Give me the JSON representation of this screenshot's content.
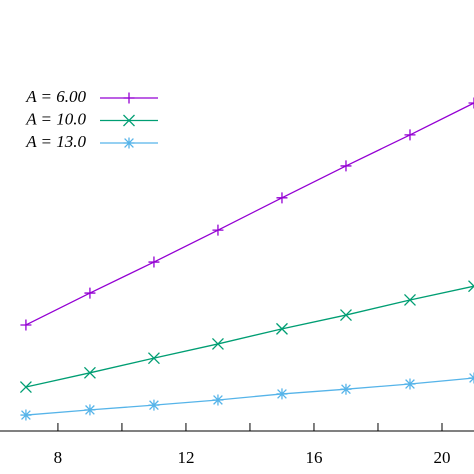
{
  "chart_data": {
    "type": "line",
    "x": [
      7,
      9,
      11,
      13,
      15,
      17,
      19,
      21
    ],
    "series": [
      {
        "name": "A = 6.00",
        "color": "#9400d3",
        "marker": "plus",
        "values": [
          24.6,
          32.0,
          39.2,
          46.6,
          54.1,
          61.5,
          68.7,
          76.1
        ]
      },
      {
        "name": "A = 10.0",
        "color": "#009e73",
        "marker": "cross",
        "values": [
          10.2,
          13.5,
          16.9,
          20.2,
          23.7,
          26.9,
          30.4,
          33.6
        ]
      },
      {
        "name": "A = 13.0",
        "color": "#56b4e9",
        "marker": "star",
        "values": [
          3.7,
          4.9,
          6.0,
          7.2,
          8.6,
          9.7,
          10.9,
          12.3
        ]
      }
    ],
    "xlim": [
      6.19,
      21.0
    ],
    "ylim": [
      0,
      100
    ],
    "xticks": [
      8,
      12,
      16,
      20
    ],
    "xminorticks": [
      6,
      10,
      14,
      18
    ],
    "legend": "upper-left"
  }
}
